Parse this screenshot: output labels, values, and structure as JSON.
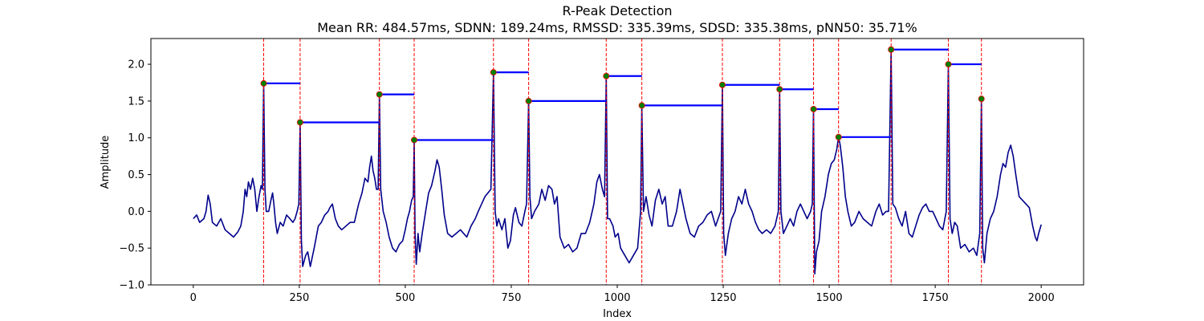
{
  "chart_data": {
    "type": "line",
    "title": "R-Peak Detection",
    "subtitle": "Mean RR: 484.57ms, SDNN: 189.24ms, RMSSD: 335.39ms, SDSD: 335.38ms, pNN50: 35.71%",
    "xlabel": "Index",
    "ylabel": "Amplitude",
    "xlim": [
      -100,
      2100
    ],
    "ylim": [
      -1.0,
      2.35
    ],
    "xticks": [
      0,
      250,
      500,
      750,
      1000,
      1250,
      1500,
      1750,
      2000
    ],
    "yticks": [
      -1.0,
      -0.5,
      0.0,
      0.5,
      1.0,
      1.5,
      2.0
    ],
    "xtick_labels": [
      "0",
      "250",
      "500",
      "750",
      "1000",
      "1250",
      "1500",
      "1750",
      "2000"
    ],
    "ytick_labels": [
      "−1.0",
      "−0.5",
      "0.0",
      "0.5",
      "1.0",
      "1.5",
      "2.0"
    ],
    "grid": false,
    "colors": {
      "signal": "#00008b",
      "peak_line": "#ff0000",
      "rr_segment": "#0000ff",
      "peak_marker": "#008000"
    },
    "signal_keypoints": [
      [
        0,
        -0.1
      ],
      [
        8,
        -0.05
      ],
      [
        15,
        -0.15
      ],
      [
        25,
        -0.1
      ],
      [
        30,
        0.0
      ],
      [
        35,
        0.22
      ],
      [
        40,
        0.1
      ],
      [
        45,
        -0.15
      ],
      [
        55,
        -0.2
      ],
      [
        65,
        -0.1
      ],
      [
        75,
        -0.25
      ],
      [
        85,
        -0.3
      ],
      [
        95,
        -0.35
      ],
      [
        105,
        -0.28
      ],
      [
        112,
        -0.2
      ],
      [
        118,
        0.0
      ],
      [
        122,
        0.3
      ],
      [
        126,
        0.2
      ],
      [
        130,
        0.4
      ],
      [
        135,
        0.3
      ],
      [
        140,
        0.45
      ],
      [
        145,
        0.3
      ],
      [
        150,
        0.0
      ],
      [
        155,
        0.2
      ],
      [
        160,
        0.35
      ],
      [
        163,
        0.3
      ],
      [
        166,
        1.74
      ],
      [
        169,
        0.3
      ],
      [
        172,
        0.0
      ],
      [
        178,
        0.0
      ],
      [
        183,
        0.15
      ],
      [
        187,
        0.25
      ],
      [
        190,
        0.1
      ],
      [
        194,
        -0.15
      ],
      [
        198,
        -0.3
      ],
      [
        205,
        -0.15
      ],
      [
        212,
        -0.2
      ],
      [
        220,
        -0.05
      ],
      [
        228,
        -0.1
      ],
      [
        235,
        -0.15
      ],
      [
        240,
        -0.1
      ],
      [
        245,
        0.0
      ],
      [
        249,
        0.1
      ],
      [
        252,
        1.21
      ],
      [
        255,
        -0.4
      ],
      [
        258,
        -0.75
      ],
      [
        265,
        -0.6
      ],
      [
        270,
        -0.55
      ],
      [
        276,
        -0.75
      ],
      [
        285,
        -0.5
      ],
      [
        295,
        -0.2
      ],
      [
        302,
        -0.15
      ],
      [
        310,
        -0.05
      ],
      [
        318,
        0.0
      ],
      [
        322,
        0.05
      ],
      [
        328,
        0.1
      ],
      [
        335,
        -0.1
      ],
      [
        342,
        -0.2
      ],
      [
        350,
        -0.25
      ],
      [
        360,
        -0.2
      ],
      [
        370,
        -0.15
      ],
      [
        380,
        -0.15
      ],
      [
        390,
        0.1
      ],
      [
        398,
        0.25
      ],
      [
        405,
        0.45
      ],
      [
        412,
        0.4
      ],
      [
        416,
        0.6
      ],
      [
        420,
        0.75
      ],
      [
        424,
        0.55
      ],
      [
        428,
        0.45
      ],
      [
        432,
        0.3
      ],
      [
        436,
        0.3
      ],
      [
        439,
        1.59
      ],
      [
        442,
        0.3
      ],
      [
        448,
        0.0
      ],
      [
        455,
        -0.15
      ],
      [
        462,
        -0.35
      ],
      [
        470,
        -0.5
      ],
      [
        478,
        -0.55
      ],
      [
        486,
        -0.45
      ],
      [
        494,
        -0.4
      ],
      [
        500,
        -0.25
      ],
      [
        505,
        -0.1
      ],
      [
        510,
        0.0
      ],
      [
        515,
        0.15
      ],
      [
        519,
        0.2
      ],
      [
        521,
        0.97
      ],
      [
        523,
        -0.3
      ],
      [
        526,
        -0.72
      ],
      [
        530,
        -0.3
      ],
      [
        534,
        -0.55
      ],
      [
        540,
        -0.3
      ],
      [
        548,
        0.0
      ],
      [
        555,
        0.25
      ],
      [
        562,
        0.35
      ],
      [
        570,
        0.55
      ],
      [
        575,
        0.7
      ],
      [
        580,
        0.6
      ],
      [
        586,
        0.3
      ],
      [
        592,
        -0.05
      ],
      [
        600,
        -0.3
      ],
      [
        610,
        -0.35
      ],
      [
        620,
        -0.3
      ],
      [
        630,
        -0.25
      ],
      [
        645,
        -0.35
      ],
      [
        655,
        -0.2
      ],
      [
        665,
        -0.1
      ],
      [
        672,
        0.0
      ],
      [
        680,
        0.1
      ],
      [
        688,
        0.2
      ],
      [
        695,
        0.25
      ],
      [
        702,
        0.3
      ],
      [
        708,
        1.89
      ],
      [
        712,
        0.0
      ],
      [
        716,
        -0.2
      ],
      [
        720,
        -0.1
      ],
      [
        728,
        -0.25
      ],
      [
        735,
        -0.1
      ],
      [
        742,
        -0.5
      ],
      [
        748,
        -0.4
      ],
      [
        755,
        -0.05
      ],
      [
        760,
        0.05
      ],
      [
        768,
        -0.15
      ],
      [
        775,
        -0.2
      ],
      [
        782,
        0.0
      ],
      [
        786,
        0.1
      ],
      [
        791,
        1.5
      ],
      [
        794,
        0.2
      ],
      [
        798,
        -0.1
      ],
      [
        805,
        0.0
      ],
      [
        815,
        0.1
      ],
      [
        822,
        0.3
      ],
      [
        830,
        0.15
      ],
      [
        838,
        0.35
      ],
      [
        846,
        0.3
      ],
      [
        852,
        0.1
      ],
      [
        858,
        0.2
      ],
      [
        865,
        -0.35
      ],
      [
        875,
        -0.5
      ],
      [
        885,
        -0.45
      ],
      [
        895,
        -0.55
      ],
      [
        905,
        -0.5
      ],
      [
        915,
        -0.3
      ],
      [
        925,
        -0.3
      ],
      [
        935,
        -0.15
      ],
      [
        945,
        0.1
      ],
      [
        952,
        0.4
      ],
      [
        958,
        0.5
      ],
      [
        965,
        0.3
      ],
      [
        970,
        0.2
      ],
      [
        974,
        1.84
      ],
      [
        977,
        -0.1
      ],
      [
        982,
        -0.1
      ],
      [
        990,
        -0.2
      ],
      [
        995,
        -0.35
      ],
      [
        1002,
        -0.3
      ],
      [
        1008,
        -0.5
      ],
      [
        1018,
        -0.6
      ],
      [
        1028,
        -0.7
      ],
      [
        1038,
        -0.6
      ],
      [
        1048,
        -0.5
      ],
      [
        1055,
        0.0
      ],
      [
        1058,
        1.44
      ],
      [
        1062,
        0.0
      ],
      [
        1068,
        0.2
      ],
      [
        1075,
        -0.05
      ],
      [
        1082,
        -0.2
      ],
      [
        1090,
        0.15
      ],
      [
        1098,
        0.3
      ],
      [
        1106,
        0.1
      ],
      [
        1113,
        0.2
      ],
      [
        1120,
        -0.2
      ],
      [
        1130,
        -0.2
      ],
      [
        1140,
        0.0
      ],
      [
        1148,
        0.3
      ],
      [
        1155,
        0.1
      ],
      [
        1162,
        -0.1
      ],
      [
        1172,
        -0.3
      ],
      [
        1182,
        -0.35
      ],
      [
        1192,
        -0.2
      ],
      [
        1202,
        -0.15
      ],
      [
        1212,
        -0.05
      ],
      [
        1222,
        0.0
      ],
      [
        1232,
        -0.2
      ],
      [
        1238,
        -0.1
      ],
      [
        1244,
        0.0
      ],
      [
        1248,
        1.72
      ],
      [
        1251,
        -0.3
      ],
      [
        1255,
        -0.6
      ],
      [
        1262,
        -0.3
      ],
      [
        1270,
        -0.1
      ],
      [
        1278,
        0.0
      ],
      [
        1286,
        0.2
      ],
      [
        1294,
        0.1
      ],
      [
        1302,
        0.3
      ],
      [
        1310,
        0.1
      ],
      [
        1318,
        0.0
      ],
      [
        1326,
        -0.15
      ],
      [
        1334,
        -0.25
      ],
      [
        1342,
        -0.3
      ],
      [
        1352,
        -0.25
      ],
      [
        1362,
        -0.3
      ],
      [
        1372,
        -0.2
      ],
      [
        1380,
        0.0
      ],
      [
        1383,
        1.66
      ],
      [
        1386,
        0.0
      ],
      [
        1392,
        -0.3
      ],
      [
        1400,
        -0.2
      ],
      [
        1408,
        -0.1
      ],
      [
        1416,
        -0.2
      ],
      [
        1424,
        0.0
      ],
      [
        1432,
        0.1
      ],
      [
        1440,
        0.0
      ],
      [
        1448,
        -0.1
      ],
      [
        1456,
        0.0
      ],
      [
        1460,
        0.1
      ],
      [
        1463,
        1.39
      ],
      [
        1466,
        -0.85
      ],
      [
        1470,
        -0.55
      ],
      [
        1476,
        -0.4
      ],
      [
        1482,
        0.0
      ],
      [
        1490,
        0.2
      ],
      [
        1498,
        0.5
      ],
      [
        1505,
        0.65
      ],
      [
        1512,
        0.7
      ],
      [
        1518,
        0.85
      ],
      [
        1522,
        1.01
      ],
      [
        1526,
        0.9
      ],
      [
        1532,
        0.6
      ],
      [
        1538,
        0.2
      ],
      [
        1544,
        0.0
      ],
      [
        1552,
        -0.2
      ],
      [
        1560,
        -0.15
      ],
      [
        1570,
        0.0
      ],
      [
        1580,
        -0.1
      ],
      [
        1590,
        -0.15
      ],
      [
        1600,
        -0.2
      ],
      [
        1610,
        0.0
      ],
      [
        1618,
        0.1
      ],
      [
        1626,
        -0.05
      ],
      [
        1634,
        0.0
      ],
      [
        1640,
        0.0
      ],
      [
        1646,
        2.2
      ],
      [
        1650,
        0.1
      ],
      [
        1656,
        0.05
      ],
      [
        1664,
        -0.1
      ],
      [
        1672,
        -0.2
      ],
      [
        1680,
        0.0
      ],
      [
        1688,
        -0.3
      ],
      [
        1696,
        -0.35
      ],
      [
        1704,
        -0.2
      ],
      [
        1712,
        -0.05
      ],
      [
        1720,
        0.05
      ],
      [
        1728,
        0.1
      ],
      [
        1736,
        0.0
      ],
      [
        1744,
        0.0
      ],
      [
        1752,
        -0.1
      ],
      [
        1760,
        -0.2
      ],
      [
        1768,
        -0.25
      ],
      [
        1776,
        0.0
      ],
      [
        1781,
        2.0
      ],
      [
        1785,
        -0.1
      ],
      [
        1790,
        -0.3
      ],
      [
        1796,
        -0.15
      ],
      [
        1802,
        -0.2
      ],
      [
        1810,
        -0.5
      ],
      [
        1820,
        -0.45
      ],
      [
        1830,
        -0.55
      ],
      [
        1840,
        -0.5
      ],
      [
        1848,
        -0.6
      ],
      [
        1855,
        -0.3
      ],
      [
        1859,
        1.53
      ],
      [
        1862,
        -0.5
      ],
      [
        1866,
        -0.7
      ],
      [
        1872,
        -0.3
      ],
      [
        1880,
        -0.1
      ],
      [
        1888,
        0.0
      ],
      [
        1896,
        0.2
      ],
      [
        1904,
        0.5
      ],
      [
        1910,
        0.65
      ],
      [
        1916,
        0.6
      ],
      [
        1922,
        0.8
      ],
      [
        1928,
        0.9
      ],
      [
        1934,
        0.75
      ],
      [
        1940,
        0.5
      ],
      [
        1948,
        0.2
      ],
      [
        1956,
        0.15
      ],
      [
        1964,
        0.1
      ],
      [
        1972,
        0.05
      ],
      [
        1980,
        -0.2
      ],
      [
        1986,
        -0.35
      ],
      [
        1990,
        -0.4
      ],
      [
        1994,
        -0.3
      ],
      [
        2000,
        -0.18
      ]
    ],
    "peaks": [
      {
        "x": 166,
        "y": 1.74
      },
      {
        "x": 252,
        "y": 1.21
      },
      {
        "x": 439,
        "y": 1.59
      },
      {
        "x": 521,
        "y": 0.97
      },
      {
        "x": 708,
        "y": 1.89
      },
      {
        "x": 791,
        "y": 1.5
      },
      {
        "x": 974,
        "y": 1.84
      },
      {
        "x": 1058,
        "y": 1.44
      },
      {
        "x": 1248,
        "y": 1.72
      },
      {
        "x": 1383,
        "y": 1.66
      },
      {
        "x": 1463,
        "y": 1.39
      },
      {
        "x": 1522,
        "y": 1.01
      },
      {
        "x": 1646,
        "y": 2.2
      },
      {
        "x": 1781,
        "y": 2.0
      },
      {
        "x": 1859,
        "y": 1.53
      }
    ]
  }
}
